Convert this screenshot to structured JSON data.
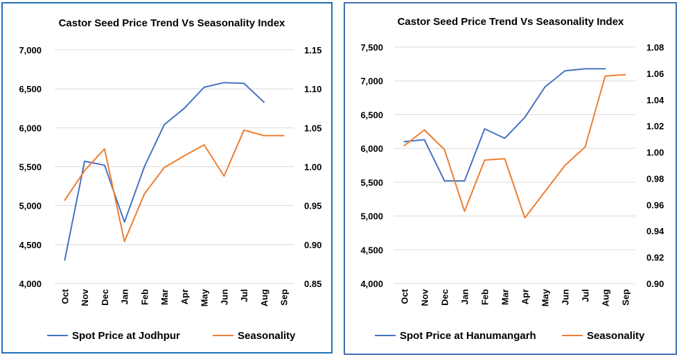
{
  "colors": {
    "spot_price": "#4472c4",
    "seasonality": "#ed7d31",
    "left_border": "#1f6fb8",
    "right_border": "#3f6fb0"
  },
  "chart_data": [
    {
      "type": "line",
      "title": "Castor Seed Price Trend  Vs Seasonality Index",
      "categories": [
        "Oct",
        "Nov",
        "Dec",
        "Jan",
        "Feb",
        "Mar",
        "Apr",
        "May",
        "Jun",
        "Jul",
        "Aug",
        "Sep"
      ],
      "ylim": [
        4000,
        7000
      ],
      "y_ticks": [
        "4,000",
        "4,500",
        "5,000",
        "5,500",
        "6,000",
        "6,500",
        "7,000"
      ],
      "y2lim": [
        0.85,
        1.15
      ],
      "y2_ticks": [
        "0.85",
        "0.90",
        "0.95",
        "1.00",
        "1.05",
        "1.10",
        "1.15"
      ],
      "grid": true,
      "legend_position": "bottom",
      "series": [
        {
          "name": "Spot Price at Jodhpur",
          "axis": "left",
          "color": "#4472c4",
          "values": [
            4300,
            5570,
            5520,
            4790,
            5500,
            6040,
            6250,
            6520,
            6580,
            6570,
            6330,
            null
          ]
        },
        {
          "name": "Seasonality",
          "axis": "right",
          "color": "#ed7d31",
          "values": [
            0.957,
            0.995,
            1.023,
            0.904,
            0.965,
            0.999,
            1.014,
            1.028,
            0.988,
            1.047,
            1.04,
            1.04
          ]
        }
      ]
    },
    {
      "type": "line",
      "title": "Castor Seed Price Trend Vs Seasonality Index",
      "categories": [
        "Oct",
        "Nov",
        "Dec",
        "Jan",
        "Feb",
        "Mar",
        "Apr",
        "May",
        "Jun",
        "Jul",
        "Aug",
        "Sep"
      ],
      "ylim": [
        4000,
        7500
      ],
      "y_ticks": [
        "4,000",
        "4,500",
        "5,000",
        "5,500",
        "6,000",
        "6,500",
        "7,000",
        "7,500"
      ],
      "y2lim": [
        0.9,
        1.08
      ],
      "y2_ticks": [
        "0.90",
        "0.92",
        "0.94",
        "0.96",
        "0.98",
        "1.00",
        "1.02",
        "1.04",
        "1.06",
        "1.08"
      ],
      "grid": true,
      "legend_position": "bottom",
      "series": [
        {
          "name": "Spot Price at Hanumangarh",
          "axis": "left",
          "color": "#4472c4",
          "values": [
            6100,
            6130,
            5520,
            5520,
            6290,
            6150,
            6460,
            6910,
            7150,
            7180,
            7180,
            null
          ]
        },
        {
          "name": "Seasonality",
          "axis": "right",
          "color": "#ed7d31",
          "values": [
            1.005,
            1.017,
            1.002,
            0.955,
            0.994,
            0.995,
            0.95,
            0.97,
            0.99,
            1.004,
            1.058,
            1.059
          ]
        }
      ]
    }
  ]
}
